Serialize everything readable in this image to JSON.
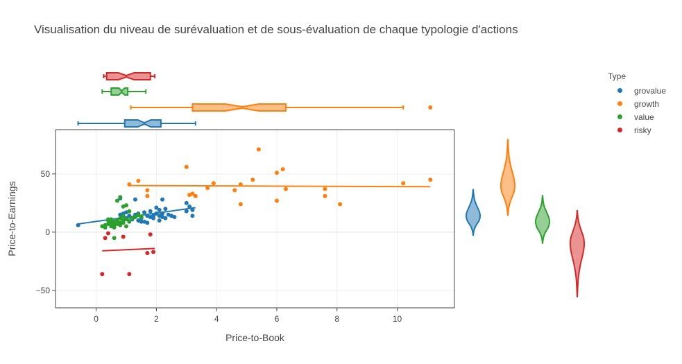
{
  "chart_data": {
    "type": "scatter",
    "title": "Visualisation du niveau de surévaluation et de sous-évaluation de chaque typologie d'actions",
    "xlabel": "Price-to-Book",
    "ylabel": "Price-to-Earnings",
    "xlim": [
      -1.35,
      11.9
    ],
    "ylim": [
      -65,
      88
    ],
    "xticks": [
      0,
      2,
      4,
      6,
      8,
      10
    ],
    "yticks": [
      -50,
      0,
      50
    ],
    "legend_title": "Type",
    "legend_position": "top-right",
    "marginal_x": "box (notched)",
    "marginal_y": "violin",
    "trendline": "ols",
    "series": [
      {
        "name": "grovalue",
        "color": "#1f77b4",
        "points": [
          [
            -0.6,
            6
          ],
          [
            0.8,
            15
          ],
          [
            0.9,
            16
          ],
          [
            1.0,
            17
          ],
          [
            1.0,
            12
          ],
          [
            1.1,
            14
          ],
          [
            1.2,
            11
          ],
          [
            1.3,
            15
          ],
          [
            1.4,
            16
          ],
          [
            1.5,
            9
          ],
          [
            1.5,
            12
          ],
          [
            1.6,
            17
          ],
          [
            1.6,
            9
          ],
          [
            1.7,
            14
          ],
          [
            1.8,
            13
          ],
          [
            1.8,
            18
          ],
          [
            1.9,
            12
          ],
          [
            1.9,
            14
          ],
          [
            2.0,
            16
          ],
          [
            2.0,
            21
          ],
          [
            2.1,
            14
          ],
          [
            2.1,
            19
          ],
          [
            2.1,
            10
          ],
          [
            2.2,
            13
          ],
          [
            2.2,
            16
          ],
          [
            2.3,
            12
          ],
          [
            2.3,
            20
          ],
          [
            2.4,
            15
          ],
          [
            2.5,
            14
          ],
          [
            2.6,
            13
          ],
          [
            2.2,
            28
          ],
          [
            3.0,
            25
          ],
          [
            3.1,
            22
          ],
          [
            3.2,
            19
          ],
          [
            3.2,
            14
          ],
          [
            3.0,
            18
          ],
          [
            1.3,
            28
          ],
          [
            0.8,
            29
          ],
          [
            1.4,
            10
          ],
          [
            1.7,
            8
          ]
        ],
        "trend": [
          [
            -0.6,
            7
          ],
          [
            3.3,
            21
          ]
        ],
        "box": {
          "min": -0.6,
          "q1": 0.95,
          "median": 1.6,
          "q3": 2.15,
          "max": 3.3
        },
        "violin": {
          "min": -3,
          "max": 37,
          "mode": 14
        }
      },
      {
        "name": "growth",
        "color": "#ff7f0e",
        "points": [
          [
            1.1,
            41
          ],
          [
            1.4,
            44
          ],
          [
            1.7,
            36
          ],
          [
            1.7,
            31
          ],
          [
            3.0,
            56
          ],
          [
            3.1,
            32
          ],
          [
            3.2,
            33
          ],
          [
            3.3,
            31
          ],
          [
            3.7,
            38
          ],
          [
            3.9,
            42
          ],
          [
            4.6,
            36
          ],
          [
            4.8,
            41
          ],
          [
            4.8,
            24
          ],
          [
            5.2,
            45
          ],
          [
            5.4,
            71
          ],
          [
            6.0,
            51
          ],
          [
            6.0,
            27
          ],
          [
            6.2,
            54
          ],
          [
            6.3,
            37
          ],
          [
            7.6,
            31
          ],
          [
            7.6,
            37
          ],
          [
            8.1,
            24
          ],
          [
            10.2,
            42
          ],
          [
            11.1,
            45
          ]
        ],
        "trend": [
          [
            1.1,
            40
          ],
          [
            11.1,
            39
          ]
        ],
        "box": {
          "min": 1.15,
          "q1": 3.2,
          "median": 4.85,
          "q3": 6.3,
          "max": 10.2,
          "outliers": [
            11.1
          ]
        },
        "violin": {
          "min": 14,
          "max": 80,
          "mode": 40
        }
      },
      {
        "name": "value",
        "color": "#2ca02c",
        "points": [
          [
            0.2,
            5
          ],
          [
            0.3,
            6
          ],
          [
            0.3,
            4
          ],
          [
            0.4,
            7
          ],
          [
            0.4,
            10
          ],
          [
            0.4,
            11
          ],
          [
            0.5,
            8
          ],
          [
            0.5,
            5
          ],
          [
            0.5,
            11
          ],
          [
            0.6,
            6
          ],
          [
            0.6,
            9
          ],
          [
            0.6,
            4
          ],
          [
            0.6,
            -5
          ],
          [
            0.7,
            7
          ],
          [
            0.7,
            10
          ],
          [
            0.7,
            27
          ],
          [
            0.8,
            8
          ],
          [
            0.8,
            6
          ],
          [
            0.8,
            12
          ],
          [
            0.9,
            10
          ],
          [
            0.9,
            14
          ],
          [
            0.9,
            8
          ],
          [
            0.9,
            22
          ],
          [
            1.0,
            23
          ],
          [
            1.0,
            11
          ],
          [
            1.0,
            5
          ],
          [
            1.1,
            9
          ],
          [
            1.2,
            12
          ],
          [
            1.3,
            13
          ],
          [
            1.4,
            15
          ],
          [
            1.5,
            13
          ],
          [
            0.8,
            30
          ],
          [
            1.1,
            18
          ]
        ],
        "trend": [
          [
            0.2,
            5
          ],
          [
            1.6,
            15
          ]
        ],
        "box": {
          "min": 0.2,
          "q1": 0.5,
          "median": 0.85,
          "q3": 1.05,
          "max": 1.65
        },
        "violin": {
          "min": -10,
          "max": 32,
          "mode": 9
        }
      },
      {
        "name": "risky",
        "color": "#d62728",
        "points": [
          [
            0.2,
            -36
          ],
          [
            0.3,
            -5
          ],
          [
            0.4,
            -1
          ],
          [
            0.9,
            -4
          ],
          [
            1.1,
            -36
          ],
          [
            1.7,
            -18
          ],
          [
            1.8,
            -2
          ],
          [
            1.9,
            -17
          ]
        ],
        "trend": [
          [
            0.2,
            -16
          ],
          [
            1.95,
            -14
          ]
        ],
        "box": {
          "min": 0.25,
          "q1": 0.35,
          "median": 1.0,
          "q3": 1.8,
          "max": 1.95
        },
        "violin": {
          "min": -56,
          "max": 19,
          "mode": -10
        }
      }
    ]
  }
}
